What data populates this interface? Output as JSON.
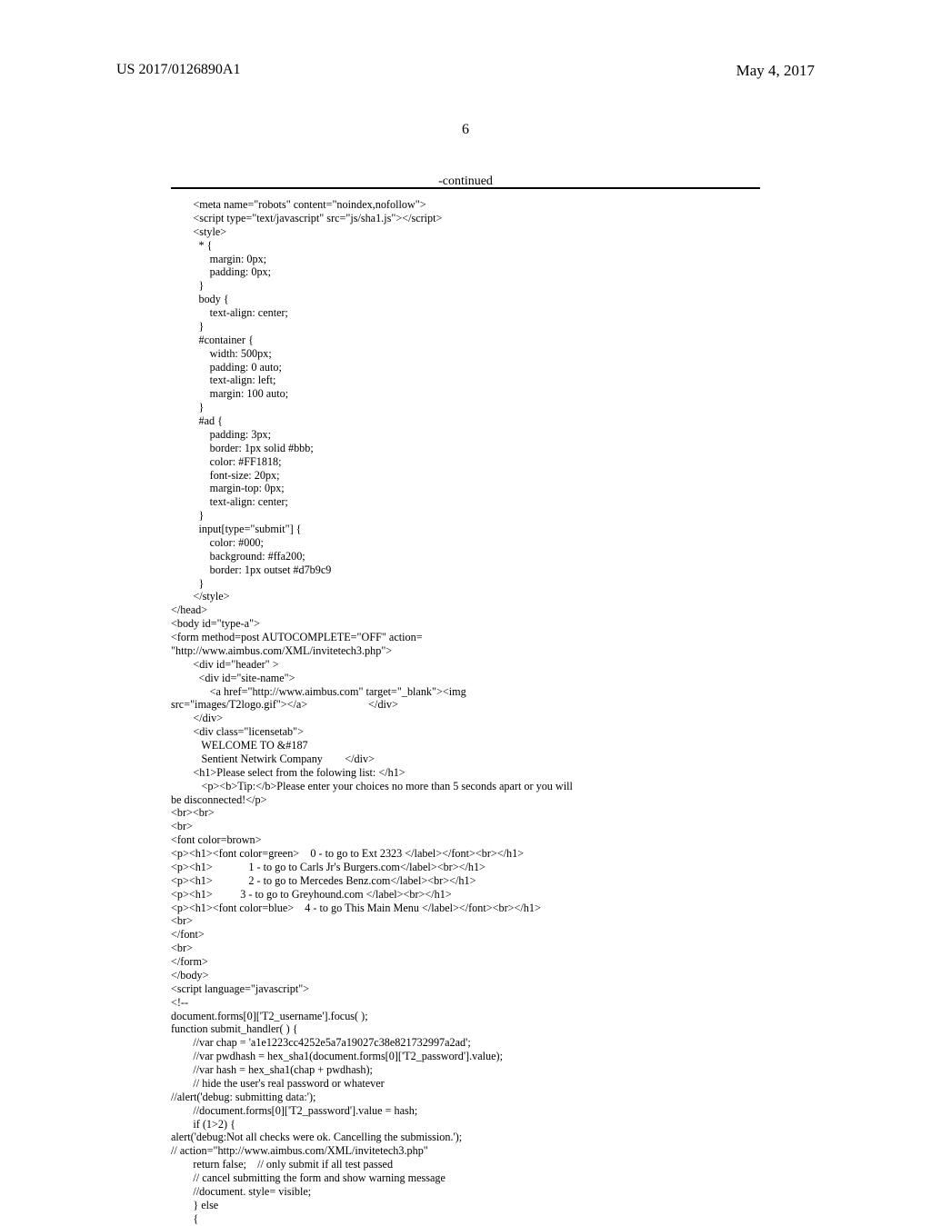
{
  "header": {
    "left": "US 2017/0126890A1",
    "right": "May 4, 2017"
  },
  "page_number": "6",
  "continued_label": "-continued",
  "code_lines": [
    "        <meta name=\"robots\" content=\"noindex,nofollow\">",
    "        <script type=\"text/javascript\" src=\"js/sha1.js\"></script>",
    "        <style>",
    "          * {",
    "              margin: 0px;",
    "              padding: 0px;",
    "          }",
    "          body {",
    "              text-align: center;",
    "          }",
    "          #container {",
    "              width: 500px;",
    "              padding: 0 auto;",
    "              text-align: left;",
    "              margin: 100 auto;",
    "          }",
    "          #ad {",
    "              padding: 3px;",
    "              border: 1px solid #bbb;",
    "              color: #FF1818;",
    "              font-size: 20px;",
    "              margin-top: 0px;",
    "              text-align: center;",
    "          }",
    "          input[type=\"submit\"] {",
    "              color: #000;",
    "              background: #ffa200;",
    "              border: 1px outset #d7b9c9",
    "          }",
    "        </style>",
    "</head>",
    "<body id=\"type-a\">",
    "<form method=post AUTOCOMPLETE=\"OFF\" action=",
    "\"http://www.aimbus.com/XML/invitetech3.php\">",
    "        <div id=\"header\" >",
    "          <div id=\"site-name\">",
    "              <a href=\"http://www.aimbus.com\" target=\"_blank\"><img",
    "src=\"images/T2logo.gif\"></a>                      </div>",
    "        </div>",
    "        <div class=\"licensetab\">",
    "           WELCOME TO &#187",
    "           Sentient Netwirk Company        </div>",
    "        <h1>Please select from the folowing list: </h1>",
    "           <p><b>Tip:</b>Please enter your choices no more than 5 seconds apart or you will",
    "be disconnected!</p>",
    "<br><br>",
    "<br>",
    "<font color=brown>",
    "<p><h1><font color=green>    0 - to go to Ext 2323 </label></font><br></h1>",
    "<p><h1>             1 - to go to Carls Jr's Burgers.com</label><br></h1>",
    "<p><h1>             2 - to go to Mercedes Benz.com</label><br></h1>",
    "<p><h1>          3 - to go to Greyhound.com </label><br></h1>",
    "<p><h1><font color=blue>    4 - to go This Main Menu </label></font><br></h1>",
    "<br>",
    "</font>",
    "<br>",
    "</form>",
    "</body>",
    "<script language=\"javascript\">",
    "<!--",
    "document.forms[0]['T2_username'].focus( );",
    "function submit_handler( ) {",
    "        //var chap = 'a1e1223cc4252e5a7a19027c38e821732997a2ad';",
    "        //var pwdhash = hex_sha1(document.forms[0]['T2_password'].value);",
    "        //var hash = hex_sha1(chap + pwdhash);",
    "        // hide the user's real password or whatever",
    "//alert('debug: submitting data:');",
    "        //document.forms[0]['T2_password'].value = hash;",
    "        if (1>2) {",
    "alert('debug:Not all checks were ok. Cancelling the submission.');",
    "// action=\"http://www.aimbus.com/XML/invitetech3.php\"",
    "        return false;    // only submit if all test passed",
    "        // cancel submitting the form and show warning message",
    "        //document. style= visible;",
    "        } else",
    "        {"
  ]
}
